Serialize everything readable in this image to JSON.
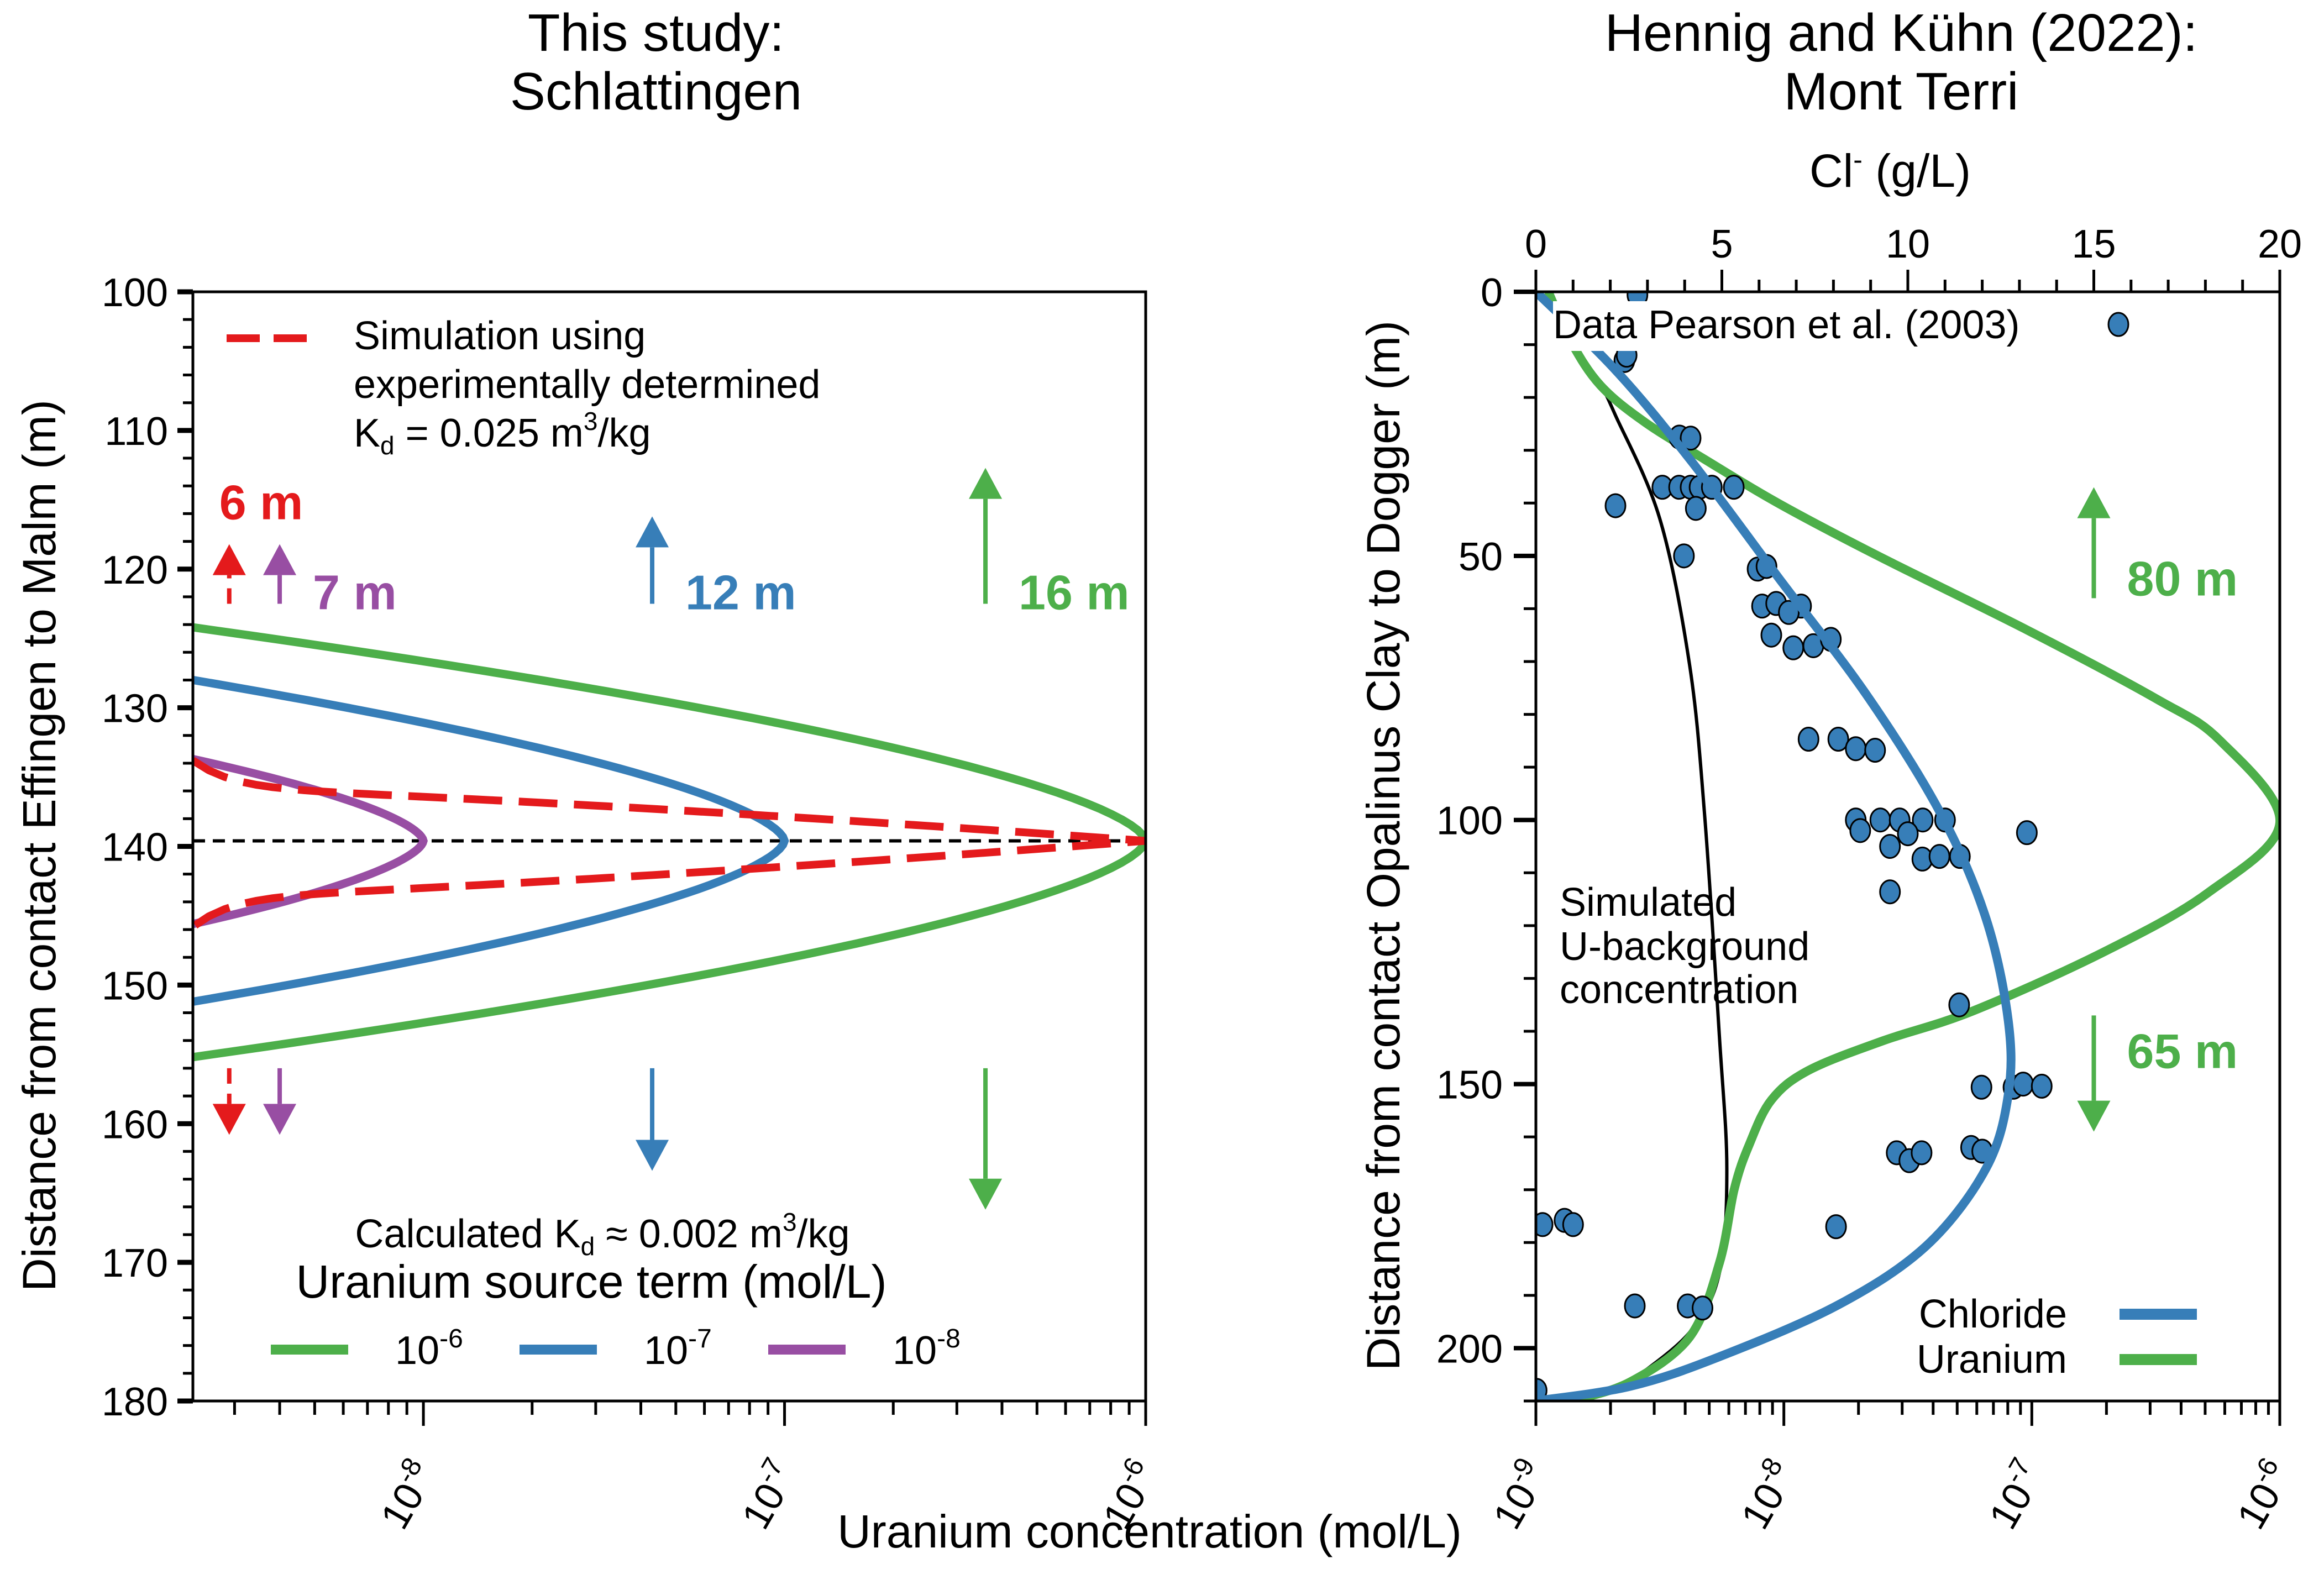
{
  "chart_data": [
    {
      "id": "left",
      "type": "line",
      "title": [
        "This study:",
        "Schlattingen"
      ],
      "xlabel": "Uranium concentration (mol/L)",
      "ylabel": "Distance from contact Effingen to Malm (m)",
      "xscale": "log",
      "xlim": [
        2.3e-09,
        1e-06
      ],
      "ylim": [
        100,
        180
      ],
      "y_inverted": true,
      "x_ticks": [
        {
          "value": 1e-08,
          "base": "10",
          "exp": "-8"
        },
        {
          "value": 1e-07,
          "base": "10",
          "exp": "-7"
        },
        {
          "value": 1e-06,
          "base": "10",
          "exp": "-6"
        }
      ],
      "y_ticks": [
        100,
        110,
        120,
        130,
        140,
        150,
        160,
        170,
        180
      ],
      "center_line": {
        "y": 139.6,
        "style": "black dashed"
      },
      "series": [
        {
          "name": "10^-6",
          "color": "#4DAF4A",
          "style": "solid",
          "peak": {
            "x": 1e-06,
            "y": 139.6
          },
          "top_y": 124.2,
          "bottom_y": 155.2
        },
        {
          "name": "10^-7",
          "color": "#377EB8",
          "style": "solid",
          "peak": {
            "x": 1e-07,
            "y": 139.6
          },
          "top_y": 128.0,
          "bottom_y": 151.2
        },
        {
          "name": "10^-8",
          "color": "#984EA3",
          "style": "solid",
          "peak": {
            "x": 1e-08,
            "y": 139.6
          },
          "top_y": 133.7,
          "bottom_y": 145.6
        },
        {
          "name": "Simulation using experimentally determined Kd = 0.025 m3/kg",
          "color": "#E41A1C",
          "style": "dashed",
          "peak": {
            "x": 1e-06,
            "y": 139.6
          },
          "top_y": 133.8,
          "bottom_y": 145.8
        }
      ],
      "legend_top": {
        "lines": [
          "Simulation using",
          "experimentally determined"
        ],
        "kd_prefix": "K",
        "kd_sub": "d",
        "kd_value": " = 0.025 m",
        "kd_sup": "3",
        "kd_unit": "/kg",
        "color": "#E41A1C"
      },
      "legend_bottom": {
        "calc_prefix": "Calculated K",
        "calc_sub": "d",
        "calc_value": " ≈ 0.002 m",
        "calc_sup": "3",
        "calc_unit": "/kg",
        "title": "Uranium source term (mol/L)",
        "entries": [
          {
            "base": "10",
            "exp": "-6",
            "color": "#4DAF4A"
          },
          {
            "base": "10",
            "exp": "-7",
            "color": "#377EB8"
          },
          {
            "base": "10",
            "exp": "-8",
            "color": "#984EA3"
          }
        ]
      },
      "arrows": [
        {
          "label": "6 m",
          "color": "#E41A1C",
          "x": 2.9e-09,
          "up_from": 122.5,
          "up_to": 118.2,
          "down_from": 156.0,
          "down_to": 160.8,
          "dashed": true,
          "label_pos": "above"
        },
        {
          "label": "7 m",
          "color": "#984EA3",
          "x": 4e-09,
          "up_from": 122.5,
          "up_to": 118.2,
          "down_from": 156.0,
          "down_to": 160.8,
          "dashed": false,
          "label_pos": "right"
        },
        {
          "label": "12 m",
          "color": "#377EB8",
          "x": 4.3e-08,
          "up_from": 122.5,
          "up_to": 116.2,
          "down_from": 156.0,
          "down_to": 163.4,
          "dashed": false,
          "label_pos": "right"
        },
        {
          "label": "16 m",
          "color": "#4DAF4A",
          "x": 3.6e-07,
          "up_from": 122.5,
          "up_to": 112.7,
          "down_from": 156.0,
          "down_to": 166.2,
          "dashed": false,
          "label_pos": "right"
        }
      ]
    },
    {
      "id": "right",
      "type": "scatter",
      "title": [
        "Hennig and Kühn (2022):",
        "Mont Terri"
      ],
      "xlabel_top": "Cl",
      "xlabel_top_sup": "-",
      "xlabel_top_unit": " (g/L)",
      "ylabel": "Distance from contact Opalinus Clay to Dogger (m)",
      "xlim_top": [
        0,
        20
      ],
      "xlim_bottom": [
        1e-09,
        1e-06
      ],
      "xscale_bottom": "log",
      "ylim": [
        0,
        210
      ],
      "y_inverted": true,
      "x_ticks_top": [
        0,
        5,
        10,
        15,
        20
      ],
      "x_ticks_bottom": [
        {
          "value": 1e-09,
          "base": "10",
          "exp": "-9"
        },
        {
          "value": 1e-08,
          "base": "10",
          "exp": "-8"
        },
        {
          "value": 1e-07,
          "base": "10",
          "exp": "-7"
        },
        {
          "value": 1e-06,
          "base": "10",
          "exp": "-6"
        }
      ],
      "y_ticks": [
        0,
        50,
        100,
        150,
        200
      ],
      "data_legend": "Data Pearson et al. (2003)",
      "series_legend": [
        {
          "name": "Chloride",
          "color": "#377EB8"
        },
        {
          "name": "Uranium",
          "color": "#4DAF4A"
        }
      ],
      "annotation": [
        "Simulated",
        "U-background",
        "concentration"
      ],
      "arrows": [
        {
          "label": "80 m",
          "color": "#4DAF4A",
          "cl_x": 15.0,
          "from": 58,
          "to": 37,
          "dir": "up"
        },
        {
          "label": "65 m",
          "color": "#4DAF4A",
          "cl_x": 15.0,
          "from": 137,
          "to": 159,
          "dir": "down"
        }
      ],
      "chloride_curve": {
        "units": "Cl g/L",
        "points": [
          [
            0,
            0
          ],
          [
            2.15,
            14.9
          ],
          [
            4.14,
            31.7
          ],
          [
            6.53,
            54.2
          ],
          [
            8.92,
            76.6
          ],
          [
            10.9,
            99
          ],
          [
            12.1,
            118.6
          ],
          [
            12.7,
            138
          ],
          [
            12.7,
            152
          ],
          [
            12.1,
            166
          ],
          [
            10.5,
            180.6
          ],
          [
            8.13,
            191.8
          ],
          [
            4.94,
            201.6
          ],
          [
            2.55,
            207.2
          ],
          [
            0,
            210
          ]
        ]
      },
      "uranium_curve": {
        "units": "log10 mol/L",
        "points": [
          [
            -8.95,
            0
          ],
          [
            -8.86,
            9.3
          ],
          [
            -8.74,
            17.7
          ],
          [
            -8.56,
            24.7
          ],
          [
            -8.32,
            31.7
          ],
          [
            -8.02,
            40.1
          ],
          [
            -7.62,
            50.0
          ],
          [
            -7.02,
            64.0
          ],
          [
            -6.5,
            77.0
          ],
          [
            -6.24,
            85.0
          ],
          [
            -6.0,
            100.5
          ],
          [
            -6.29,
            113.8
          ],
          [
            -6.71,
            125.0
          ],
          [
            -7.24,
            136.2
          ],
          [
            -7.6,
            141.8
          ],
          [
            -7.9,
            147.4
          ],
          [
            -8.05,
            153.0
          ],
          [
            -8.14,
            161.5
          ],
          [
            -8.2,
            169.9
          ],
          [
            -8.26,
            183.9
          ],
          [
            -8.38,
            197.9
          ],
          [
            -8.62,
            206.4
          ],
          [
            -8.86,
            210
          ]
        ]
      },
      "background_curve": {
        "units": "log10 mol/L",
        "points": [
          [
            -8.95,
            0
          ],
          [
            -8.86,
            9.3
          ],
          [
            -8.74,
            17.7
          ],
          [
            -8.68,
            23.3
          ],
          [
            -8.5,
            43.0
          ],
          [
            -8.38,
            70.7
          ],
          [
            -8.32,
            98.8
          ],
          [
            -8.26,
            140.9
          ],
          [
            -8.23,
            166.1
          ],
          [
            -8.26,
            185.8
          ],
          [
            -8.38,
            197.0
          ],
          [
            -8.62,
            206.4
          ]
        ]
      },
      "data_points": [
        [
          2.73,
          0.6
        ],
        [
          2.38,
          13
        ],
        [
          2.44,
          12
        ],
        [
          3.86,
          27.5
        ],
        [
          4.16,
          27.7
        ],
        [
          2.14,
          40.5
        ],
        [
          3.4,
          37
        ],
        [
          3.85,
          37
        ],
        [
          4.16,
          37
        ],
        [
          4.4,
          37
        ],
        [
          4.73,
          37
        ],
        [
          5.32,
          37
        ],
        [
          4.3,
          41
        ],
        [
          3.98,
          50
        ],
        [
          5.96,
          52.5
        ],
        [
          6.2,
          52
        ],
        [
          6.08,
          59.5
        ],
        [
          6.46,
          59
        ],
        [
          7.13,
          59.5
        ],
        [
          6.8,
          60.7
        ],
        [
          6.33,
          65
        ],
        [
          6.92,
          67.4
        ],
        [
          7.46,
          67
        ],
        [
          7.93,
          65.8
        ],
        [
          7.33,
          84.7
        ],
        [
          8.13,
          84.7
        ],
        [
          8.6,
          86.5
        ],
        [
          9.12,
          86.8
        ],
        [
          8.6,
          100
        ],
        [
          9.26,
          100
        ],
        [
          9.78,
          100
        ],
        [
          10.4,
          100
        ],
        [
          11.0,
          100
        ],
        [
          8.72,
          102
        ],
        [
          10.0,
          102.6
        ],
        [
          13.2,
          102.4
        ],
        [
          9.52,
          105
        ],
        [
          10.39,
          107.4
        ],
        [
          10.85,
          106.9
        ],
        [
          11.4,
          106.9
        ],
        [
          9.52,
          113.6
        ],
        [
          11.38,
          135
        ],
        [
          11.98,
          150.6
        ],
        [
          12.84,
          150.6
        ],
        [
          13.1,
          150
        ],
        [
          13.6,
          150.4
        ],
        [
          9.7,
          163
        ],
        [
          10.04,
          164.5
        ],
        [
          10.37,
          163
        ],
        [
          11.7,
          162
        ],
        [
          12.0,
          162.7
        ],
        [
          0.18,
          176.6
        ],
        [
          0.77,
          175.8
        ],
        [
          1.0,
          176.6
        ],
        [
          8.07,
          177
        ],
        [
          2.66,
          192
        ],
        [
          4.08,
          192
        ],
        [
          4.48,
          192.4
        ],
        [
          0.02,
          208
        ]
      ]
    }
  ]
}
